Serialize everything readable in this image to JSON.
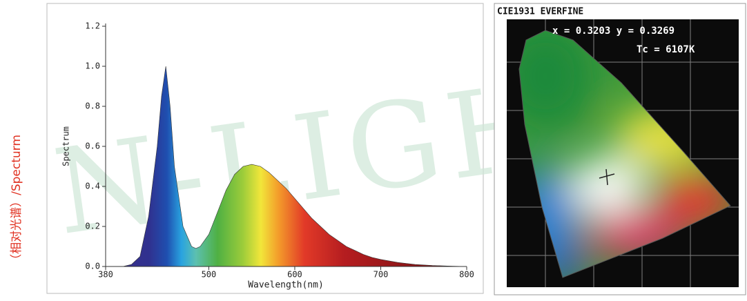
{
  "side_label": "（相对光谱）/Specturm",
  "watermark": "N-LIGHT",
  "chart_data": {
    "type": "area",
    "x_label": "Wavelength(nm)",
    "y_label": "Spectrum",
    "x": [
      400,
      410,
      420,
      430,
      440,
      445,
      450,
      455,
      460,
      470,
      480,
      485,
      490,
      500,
      510,
      520,
      530,
      540,
      550,
      560,
      570,
      580,
      590,
      600,
      610,
      620,
      630,
      640,
      650,
      660,
      670,
      680,
      690,
      700,
      720,
      740,
      760,
      780,
      800
    ],
    "y": [
      0,
      0.01,
      0.05,
      0.25,
      0.6,
      0.85,
      1.0,
      0.8,
      0.5,
      0.2,
      0.1,
      0.09,
      0.1,
      0.16,
      0.27,
      0.38,
      0.46,
      0.5,
      0.51,
      0.5,
      0.47,
      0.43,
      0.39,
      0.34,
      0.29,
      0.24,
      0.2,
      0.16,
      0.13,
      0.1,
      0.08,
      0.06,
      0.045,
      0.035,
      0.02,
      0.01,
      0.005,
      0.002,
      0
    ],
    "xlim": [
      380,
      800
    ],
    "xticks": [
      380,
      500,
      600,
      700,
      800
    ],
    "ylim": [
      0,
      1.2
    ],
    "yticks": [
      {
        "value": 0,
        "label": "0.0"
      },
      0.2,
      0.4,
      0.6,
      0.8,
      {
        "value": 1,
        "label": "1.0"
      },
      1.2
    ]
  },
  "cie": {
    "title": "CIE1931 EVERFINE",
    "coordinates": "x = 0.3203 y = 0.3269",
    "tc": "Tc = 6107K"
  }
}
